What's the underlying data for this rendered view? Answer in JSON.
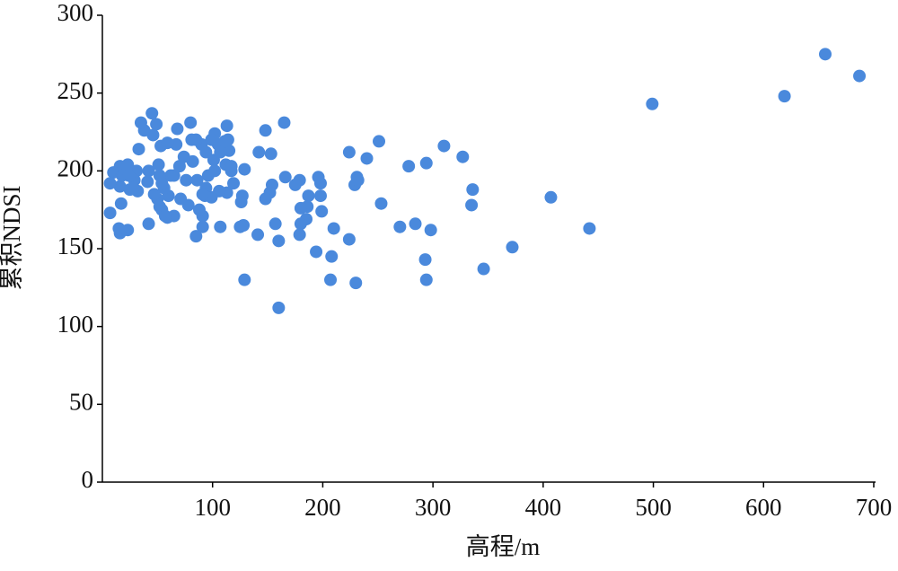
{
  "chart_data": {
    "type": "scatter",
    "x_label": "高程/m",
    "y_label": "累积NDSI",
    "color": "#4a89dc",
    "xlim": [
      0,
      700
    ],
    "xticks": [
      100,
      200,
      300,
      400,
      500,
      600,
      700
    ],
    "ylim": [
      0,
      300
    ],
    "yticks": [
      0,
      50,
      100,
      150,
      200,
      250,
      300
    ],
    "x": [
      656,
      619,
      687,
      499,
      442,
      407,
      372,
      346,
      336,
      335,
      327,
      310,
      298,
      294,
      293,
      294,
      284,
      278,
      270,
      253,
      251,
      240,
      231,
      229,
      232,
      224,
      224,
      230,
      210,
      208,
      207,
      198,
      199,
      198,
      196,
      194,
      187,
      186,
      185,
      180,
      180,
      179,
      175,
      179,
      165,
      166,
      160,
      160,
      157,
      154,
      153,
      148,
      152,
      148,
      141,
      142,
      129,
      128,
      129,
      127,
      125,
      126,
      119,
      117,
      113,
      114,
      115,
      112,
      113,
      107,
      106,
      105,
      102,
      101,
      99,
      96,
      94,
      93,
      91,
      88,
      91,
      85,
      90,
      85,
      80,
      82,
      78,
      74,
      71,
      68,
      67,
      62,
      65,
      59,
      60,
      56,
      54,
      53,
      51,
      52,
      50,
      49,
      45,
      46,
      42,
      41,
      38,
      35,
      33,
      31,
      32,
      29,
      25,
      23,
      23,
      17,
      16,
      16,
      16,
      15,
      10,
      7,
      7,
      18,
      24,
      28,
      42,
      47,
      52,
      57,
      65,
      70,
      76,
      81,
      91,
      94,
      99,
      107,
      111,
      117,
      102,
      86,
      54,
      59
    ],
    "values": [
      275,
      248,
      261,
      243,
      163,
      183,
      151,
      137,
      188,
      178,
      209,
      216,
      162,
      205,
      143,
      130,
      166,
      203,
      164,
      179,
      219,
      208,
      196,
      191,
      194,
      212,
      156,
      128,
      163,
      145,
      130,
      184,
      174,
      192,
      196,
      148,
      184,
      177,
      169,
      176,
      166,
      194,
      191,
      159,
      231,
      196,
      112,
      155,
      166,
      191,
      211,
      226,
      186,
      182,
      159,
      212,
      201,
      165,
      130,
      184,
      164,
      180,
      192,
      200,
      229,
      220,
      213,
      204,
      186,
      164,
      187,
      217,
      224,
      207,
      183,
      197,
      189,
      184,
      171,
      175,
      164,
      158,
      217,
      220,
      231,
      206,
      178,
      209,
      182,
      227,
      217,
      197,
      171,
      170,
      184,
      189,
      175,
      216,
      204,
      197,
      182,
      230,
      237,
      223,
      166,
      193,
      226,
      231,
      214,
      200,
      187,
      194,
      188,
      204,
      162,
      179,
      203,
      190,
      160,
      163,
      199,
      192,
      173,
      197,
      197,
      189,
      200,
      185,
      177,
      171,
      197,
      203,
      194,
      220,
      185,
      212,
      220,
      212,
      219,
      203,
      200,
      194,
      192,
      218
    ]
  }
}
